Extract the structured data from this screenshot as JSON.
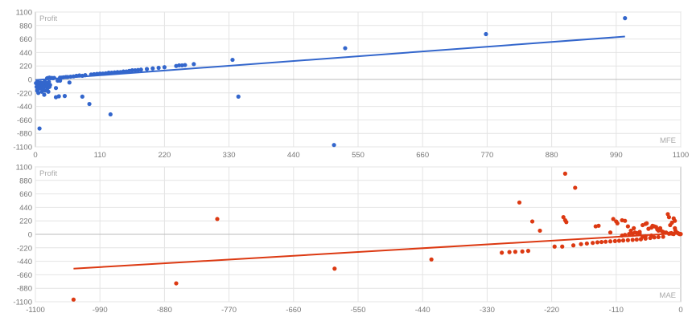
{
  "chart_data": [
    {
      "type": "scatter",
      "xlabel": "MFE",
      "ylabel": "Profit",
      "color": "#3366cc",
      "xlim": [
        0,
        1100
      ],
      "ylim": [
        -1100,
        1100
      ],
      "xticks": [
        0,
        110,
        220,
        330,
        440,
        550,
        660,
        770,
        880,
        990,
        1100
      ],
      "yticks": [
        1100,
        880,
        660,
        440,
        220,
        0,
        -220,
        -440,
        -660,
        -880,
        -1100
      ],
      "grid": true,
      "trendline": {
        "x1": 0,
        "y1": -10,
        "x2": 1005,
        "y2": 700
      },
      "points": [
        [
          1,
          -60
        ],
        [
          2,
          -120
        ],
        [
          3,
          -80
        ],
        [
          3,
          -180
        ],
        [
          4,
          -40
        ],
        [
          5,
          -100
        ],
        [
          5,
          -220
        ],
        [
          6,
          -150
        ],
        [
          7,
          -60
        ],
        [
          7,
          -800
        ],
        [
          8,
          -140
        ],
        [
          9,
          -50
        ],
        [
          10,
          -110
        ],
        [
          11,
          -200
        ],
        [
          12,
          -90
        ],
        [
          12,
          -60
        ],
        [
          13,
          -170
        ],
        [
          14,
          -130
        ],
        [
          15,
          -250
        ],
        [
          15,
          -70
        ],
        [
          16,
          -30
        ],
        [
          17,
          -180
        ],
        [
          18,
          -110
        ],
        [
          19,
          -60
        ],
        [
          20,
          -90
        ],
        [
          21,
          -140
        ],
        [
          22,
          -200
        ],
        [
          23,
          -40
        ],
        [
          24,
          -120
        ],
        [
          25,
          -90
        ],
        [
          20,
          20
        ],
        [
          22,
          25
        ],
        [
          24,
          30
        ],
        [
          26,
          20
        ],
        [
          28,
          25
        ],
        [
          30,
          20
        ],
        [
          32,
          25
        ],
        [
          35,
          -140
        ],
        [
          38,
          -20
        ],
        [
          42,
          -20
        ],
        [
          35,
          -290
        ],
        [
          40,
          -275
        ],
        [
          42,
          30
        ],
        [
          45,
          30
        ],
        [
          48,
          35
        ],
        [
          50,
          -270
        ],
        [
          52,
          40
        ],
        [
          55,
          40
        ],
        [
          60,
          45
        ],
        [
          58,
          -50
        ],
        [
          65,
          50
        ],
        [
          70,
          60
        ],
        [
          75,
          65
        ],
        [
          80,
          -280
        ],
        [
          80,
          60
        ],
        [
          85,
          70
        ],
        [
          92,
          -400
        ],
        [
          95,
          80
        ],
        [
          100,
          85
        ],
        [
          105,
          90
        ],
        [
          110,
          95
        ],
        [
          115,
          95
        ],
        [
          120,
          100
        ],
        [
          125,
          110
        ],
        [
          128,
          -570
        ],
        [
          130,
          110
        ],
        [
          135,
          115
        ],
        [
          140,
          120
        ],
        [
          145,
          120
        ],
        [
          150,
          130
        ],
        [
          155,
          130
        ],
        [
          160,
          140
        ],
        [
          165,
          150
        ],
        [
          170,
          150
        ],
        [
          175,
          155
        ],
        [
          180,
          160
        ],
        [
          190,
          170
        ],
        [
          200,
          180
        ],
        [
          210,
          190
        ],
        [
          220,
          200
        ],
        [
          240,
          220
        ],
        [
          245,
          230
        ],
        [
          250,
          230
        ],
        [
          255,
          235
        ],
        [
          270,
          250
        ],
        [
          336,
          320
        ],
        [
          346,
          -280
        ],
        [
          509,
          -1070
        ],
        [
          528,
          510
        ],
        [
          768,
          740
        ],
        [
          1005,
          1000
        ]
      ]
    },
    {
      "type": "scatter",
      "xlabel": "MAE",
      "ylabel": "Profit",
      "color": "#dc3912",
      "xlim": [
        -1100,
        0
      ],
      "ylim": [
        -1100,
        1100
      ],
      "xticks": [
        -1100,
        -990,
        -880,
        -770,
        -660,
        -550,
        -440,
        -330,
        -220,
        -110,
        0
      ],
      "yticks": [
        1100,
        880,
        660,
        440,
        220,
        0,
        -220,
        -440,
        -660,
        -880,
        -1100
      ],
      "grid": true,
      "trendline": {
        "x1": -1035,
        "y1": -560,
        "x2": 0,
        "y2": 20
      },
      "points": [
        [
          -1035,
          -1065
        ],
        [
          -860,
          -800
        ],
        [
          -790,
          250
        ],
        [
          -590,
          -560
        ],
        [
          -425,
          -410
        ],
        [
          -305,
          -300
        ],
        [
          -292,
          -290
        ],
        [
          -282,
          -285
        ],
        [
          -270,
          -280
        ],
        [
          -260,
          -270
        ],
        [
          -275,
          520
        ],
        [
          -253,
          210
        ],
        [
          -240,
          60
        ],
        [
          -215,
          -200
        ],
        [
          -202,
          -200
        ],
        [
          -200,
          280
        ],
        [
          -197,
          230
        ],
        [
          -195,
          200
        ],
        [
          -197,
          990
        ],
        [
          -183,
          -180
        ],
        [
          -180,
          760
        ],
        [
          -170,
          -160
        ],
        [
          -160,
          -150
        ],
        [
          -150,
          -140
        ],
        [
          -142,
          -130
        ],
        [
          -135,
          -125
        ],
        [
          -128,
          -120
        ],
        [
          -120,
          -115
        ],
        [
          -112,
          -110
        ],
        [
          -105,
          -105
        ],
        [
          -98,
          -100
        ],
        [
          -90,
          -95
        ],
        [
          -82,
          -90
        ],
        [
          -75,
          -85
        ],
        [
          -68,
          -80
        ],
        [
          -60,
          -70
        ],
        [
          -52,
          -60
        ],
        [
          -45,
          -50
        ],
        [
          -38,
          -45
        ],
        [
          -30,
          -40
        ],
        [
          -145,
          130
        ],
        [
          -140,
          140
        ],
        [
          -120,
          30
        ],
        [
          -115,
          250
        ],
        [
          -110,
          210
        ],
        [
          -108,
          180
        ],
        [
          -100,
          230
        ],
        [
          -95,
          220
        ],
        [
          -90,
          130
        ],
        [
          -85,
          60
        ],
        [
          -80,
          100
        ],
        [
          -70,
          40
        ],
        [
          -65,
          150
        ],
        [
          -60,
          170
        ],
        [
          -58,
          180
        ],
        [
          -55,
          90
        ],
        [
          -50,
          110
        ],
        [
          -48,
          140
        ],
        [
          -45,
          130
        ],
        [
          -42,
          120
        ],
        [
          -40,
          80
        ],
        [
          -38,
          60
        ],
        [
          -35,
          100
        ],
        [
          -32,
          50
        ],
        [
          -30,
          40
        ],
        [
          -25,
          30
        ],
        [
          -22,
          330
        ],
        [
          -20,
          280
        ],
        [
          -18,
          150
        ],
        [
          -15,
          190
        ],
        [
          -12,
          260
        ],
        [
          -10,
          220
        ],
        [
          -10,
          100
        ],
        [
          -9,
          60
        ],
        [
          -8,
          40
        ],
        [
          -7,
          30
        ],
        [
          -6,
          25
        ],
        [
          -5,
          20
        ],
        [
          -4,
          15
        ],
        [
          -3,
          10
        ],
        [
          -2,
          5
        ],
        [
          -1,
          5
        ],
        [
          0,
          5
        ],
        [
          -20,
          10
        ],
        [
          -18,
          15
        ],
        [
          -16,
          20
        ],
        [
          -14,
          10
        ],
        [
          -12,
          5
        ],
        [
          -50,
          -20
        ],
        [
          -60,
          -30
        ],
        [
          -65,
          -40
        ],
        [
          -70,
          10
        ],
        [
          -75,
          20
        ],
        [
          -78,
          30
        ],
        [
          -82,
          10
        ],
        [
          -88,
          5
        ],
        [
          -95,
          -10
        ],
        [
          -100,
          -20
        ]
      ]
    }
  ]
}
